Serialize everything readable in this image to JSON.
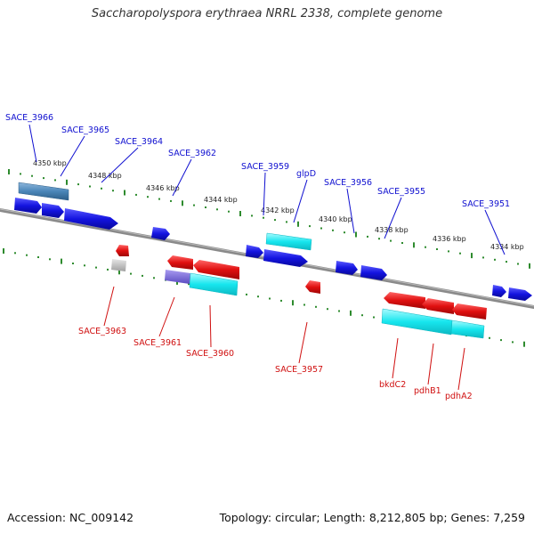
{
  "title": "Saccharopolyspora erythraea NRRL 2338, complete genome",
  "footer": {
    "accession": "Accession: NC_009142",
    "stats": "Topology: circular; Length: 8,212,805 bp; Genes: 7,259"
  },
  "colors": {
    "forward_gene": "#1414e0",
    "reverse_gene": "#e01010",
    "cyan_feature": "#17e6ee",
    "steel_feature": "#4a86b8",
    "gray_feature": "#bdbdbd",
    "purple_feature": "#7d6fd8",
    "scale_ticks": "#2e8b2e",
    "forward_label": "#1010d0",
    "reverse_label": "#d01010"
  },
  "scale_labels": [
    "4350 kbp",
    "4348 kbp",
    "4346 kbp",
    "4344 kbp",
    "4342 kbp",
    "4340 kbp",
    "4338 kbp",
    "4336 kbp",
    "4334 kbp"
  ],
  "forward_labels": [
    "SACE_3966",
    "SACE_3965",
    "SACE_3964",
    "SACE_3962",
    "SACE_3959",
    "glpD",
    "SACE_3956",
    "SACE_3955",
    "SACE_3951"
  ],
  "reverse_labels": [
    "SACE_3963",
    "SACE_3961",
    "SACE_3960",
    "SACE_3957",
    "bkdC2",
    "pdhB1",
    "pdhA2"
  ]
}
